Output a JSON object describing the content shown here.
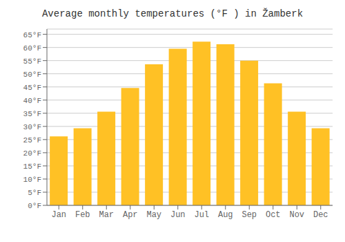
{
  "chart_data": {
    "type": "bar",
    "title": "Average monthly temperatures (°F ) in Žamberk",
    "categories": [
      "Jan",
      "Feb",
      "Mar",
      "Apr",
      "May",
      "Jun",
      "Jul",
      "Aug",
      "Sep",
      "Oct",
      "Nov",
      "Dec"
    ],
    "values": [
      26.2,
      29.3,
      35.6,
      44.6,
      53.6,
      59.5,
      62.2,
      61.2,
      55.0,
      46.4,
      35.6,
      29.3
    ],
    "color": "#FFC125",
    "ylim": [
      0,
      67
    ],
    "yticks": [
      {
        "value": 0,
        "label": "0°F"
      },
      {
        "value": 5,
        "label": "5°F"
      },
      {
        "value": 10,
        "label": "10°F"
      },
      {
        "value": 15,
        "label": "15°F"
      },
      {
        "value": 20,
        "label": "20°F"
      },
      {
        "value": 25,
        "label": "25°F"
      },
      {
        "value": 30,
        "label": "30°F"
      },
      {
        "value": 35,
        "label": "35°F"
      },
      {
        "value": 40,
        "label": "40°F"
      },
      {
        "value": 45,
        "label": "45°F"
      },
      {
        "value": 50,
        "label": "50°F"
      },
      {
        "value": 55,
        "label": "55°F"
      },
      {
        "value": 60,
        "label": "60°F"
      },
      {
        "value": 65,
        "label": "65°F"
      }
    ],
    "grid": true
  }
}
